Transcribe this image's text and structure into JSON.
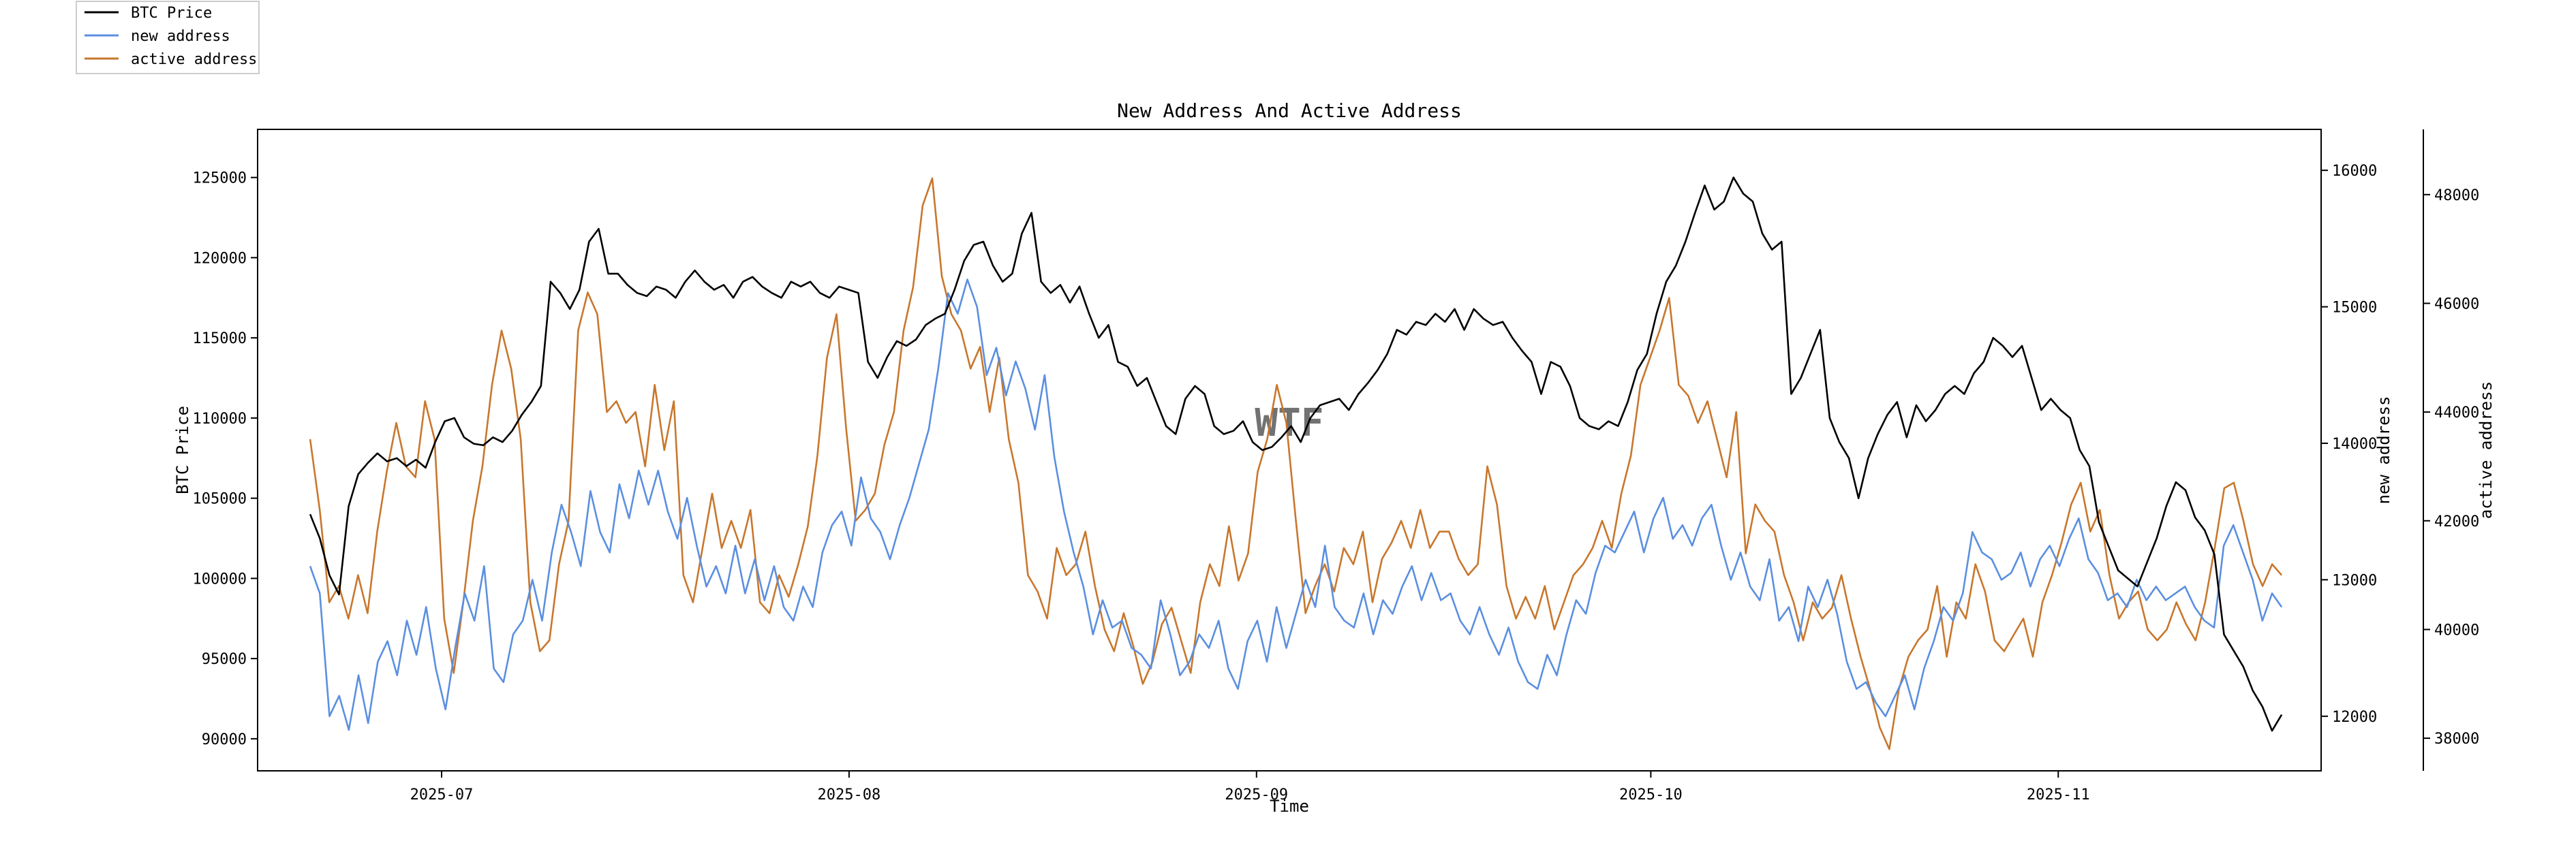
{
  "chart_data": {
    "type": "line",
    "title": "New Address And Active Address",
    "xlabel": "Time",
    "ylabels": {
      "price": "BTC Price",
      "new": "new address",
      "active": "active address"
    },
    "x_start": "2025-06-21",
    "x_end": "2025-11-18",
    "xlim": [
      "2025-06-17",
      "2025-11-21"
    ],
    "x_ticks": [
      "2025-07",
      "2025-08",
      "2025-09",
      "2025-10",
      "2025-11"
    ],
    "y_left": {
      "ylim": [
        88000,
        128000
      ],
      "ticks": [
        90000,
        95000,
        100000,
        105000,
        110000,
        115000,
        120000,
        125000
      ]
    },
    "y_right1": {
      "ylim": [
        11600,
        16300
      ],
      "ticks": [
        12000,
        13000,
        14000,
        15000,
        16000
      ]
    },
    "y_right2": {
      "ylim": [
        37400,
        49200
      ],
      "ticks": [
        38000,
        40000,
        42000,
        44000,
        46000,
        48000
      ]
    },
    "watermark": "WTF",
    "legend_position": "top-left, outside",
    "series": [
      {
        "name": "BTC Price",
        "axis": "left",
        "color": "#000000",
        "values": [
          104000,
          102500,
          100200,
          99000,
          104500,
          106500,
          107200,
          107800,
          107300,
          107500,
          107000,
          107400,
          106900,
          108500,
          109800,
          110000,
          108800,
          108400,
          108300,
          108800,
          108500,
          109200,
          110200,
          111000,
          112000,
          118500,
          117800,
          116800,
          118000,
          121000,
          121800,
          119000,
          119000,
          118300,
          117800,
          117600,
          118200,
          118000,
          117500,
          118500,
          119200,
          118500,
          118000,
          118300,
          117500,
          118500,
          118800,
          118200,
          117800,
          117500,
          118500,
          118200,
          118500,
          117800,
          117500,
          118200,
          118000,
          117800,
          113500,
          112500,
          113800,
          114800,
          114500,
          114900,
          115800,
          116200,
          116500,
          118000,
          119800,
          120800,
          121000,
          119500,
          118500,
          119000,
          121500,
          122800,
          118500,
          117800,
          118300,
          117200,
          118200,
          116500,
          115000,
          115800,
          113500,
          113200,
          112000,
          112500,
          111000,
          109500,
          109000,
          111200,
          112000,
          111500,
          109500,
          109000,
          109200,
          109800,
          108500,
          108000,
          108200,
          108800,
          109500,
          108500,
          110000,
          110800,
          111000,
          111200,
          110500,
          111500,
          112200,
          113000,
          114000,
          115500,
          115200,
          116000,
          115800,
          116500,
          116000,
          116800,
          115500,
          116800,
          116200,
          115800,
          116000,
          115000,
          114200,
          113500,
          111500,
          113500,
          113200,
          112000,
          110000,
          109500,
          109300,
          109800,
          109500,
          111000,
          113000,
          114000,
          116500,
          118500,
          119500,
          121000,
          122800,
          124500,
          123000,
          123500,
          125000,
          124000,
          123500,
          121500,
          120500,
          121000,
          111500,
          112500,
          114000,
          115500,
          110000,
          108500,
          107500,
          105000,
          107500,
          109000,
          110200,
          111000,
          108800,
          110800,
          109800,
          110500,
          111500,
          112000,
          111500,
          112800,
          113500,
          115000,
          114500,
          113800,
          114500,
          112500,
          110500,
          111200,
          110500,
          110000,
          108000,
          107000,
          103500,
          102000,
          100500,
          100000,
          99500,
          101000,
          102500,
          104500,
          106000,
          105500,
          103800,
          103000,
          101500,
          96500,
          95500,
          94500,
          93000,
          92000,
          90500,
          91500
        ]
      },
      {
        "name": "new address",
        "axis": "right1",
        "color": "#5b8fe0",
        "values": [
          13100,
          12900,
          12000,
          12150,
          11900,
          12300,
          11950,
          12400,
          12550,
          12300,
          12700,
          12450,
          12800,
          12350,
          12050,
          12500,
          12900,
          12700,
          13100,
          12350,
          12250,
          12600,
          12700,
          13000,
          12700,
          13200,
          13550,
          13350,
          13100,
          13650,
          13350,
          13200,
          13700,
          13450,
          13800,
          13550,
          13800,
          13500,
          13300,
          13600,
          13250,
          12950,
          13100,
          12900,
          13250,
          12900,
          13150,
          12850,
          13100,
          12800,
          12700,
          12950,
          12800,
          13200,
          13400,
          13500,
          13250,
          13750,
          13450,
          13350,
          13150,
          13400,
          13600,
          13850,
          14100,
          14550,
          15100,
          14950,
          15200,
          15000,
          14500,
          14700,
          14350,
          14600,
          14400,
          14100,
          14500,
          13900,
          13500,
          13200,
          12950,
          12600,
          12850,
          12650,
          12700,
          12500,
          12450,
          12350,
          12850,
          12600,
          12300,
          12400,
          12600,
          12500,
          12700,
          12350,
          12200,
          12550,
          12700,
          12400,
          12800,
          12500,
          12750,
          13000,
          12800,
          13250,
          12800,
          12700,
          12650,
          12900,
          12600,
          12850,
          12750,
          12950,
          13100,
          12850,
          13050,
          12850,
          12900,
          12700,
          12600,
          12800,
          12600,
          12450,
          12650,
          12400,
          12250,
          12200,
          12450,
          12300,
          12600,
          12850,
          12750,
          13050,
          13250,
          13200,
          13350,
          13500,
          13200,
          13450,
          13600,
          13300,
          13400,
          13250,
          13450,
          13550,
          13250,
          13000,
          13200,
          12950,
          12850,
          13150,
          12700,
          12800,
          12550,
          12950,
          12800,
          13000,
          12750,
          12400,
          12200,
          12250,
          12100,
          12000,
          12150,
          12300,
          12050,
          12350,
          12550,
          12800,
          12700,
          12900,
          13350,
          13200,
          13150,
          13000,
          13050,
          13200,
          12950,
          13150,
          13250,
          13100,
          13300,
          13450,
          13150,
          13050,
          12850,
          12900,
          12800,
          13000,
          12850,
          12950,
          12850,
          12900,
          12950,
          12800,
          12700,
          12650,
          13250,
          13400,
          13200,
          13000,
          12700,
          12900,
          12800
        ]
      },
      {
        "name": "active address",
        "axis": "right2",
        "color": "#c8772d",
        "values": [
          43500,
          42200,
          40500,
          40800,
          40200,
          41000,
          40300,
          41800,
          42900,
          43800,
          43000,
          42800,
          44200,
          43500,
          40200,
          39200,
          40500,
          42000,
          43000,
          44500,
          45500,
          44800,
          43500,
          40500,
          39600,
          39800,
          41200,
          42000,
          45500,
          46200,
          45800,
          44000,
          44200,
          43800,
          44000,
          43000,
          44500,
          43300,
          44200,
          41000,
          40500,
          41500,
          42500,
          41500,
          42000,
          41500,
          42200,
          40500,
          40300,
          41000,
          40600,
          41200,
          41900,
          43200,
          45000,
          45800,
          43700,
          42000,
          42200,
          42500,
          43400,
          44000,
          45500,
          46300,
          47800,
          48300,
          46500,
          45800,
          45500,
          44800,
          45200,
          44000,
          45000,
          43500,
          42700,
          41000,
          40700,
          40200,
          41500,
          41000,
          41200,
          41800,
          40800,
          40000,
          39600,
          40300,
          39700,
          39000,
          39400,
          40100,
          40400,
          39800,
          39200,
          40500,
          41200,
          40800,
          41900,
          40900,
          41400,
          42900,
          43500,
          44500,
          43800,
          42000,
          40300,
          40800,
          41200,
          40700,
          41500,
          41200,
          41800,
          40500,
          41300,
          41600,
          42000,
          41500,
          42200,
          41500,
          41800,
          41800,
          41300,
          41000,
          41200,
          43000,
          42300,
          40800,
          40200,
          40600,
          40200,
          40800,
          40000,
          40500,
          41000,
          41200,
          41500,
          42000,
          41500,
          42500,
          43200,
          44500,
          45000,
          45500,
          46100,
          44500,
          44300,
          43800,
          44200,
          43500,
          42800,
          44000,
          41400,
          42300,
          42000,
          41800,
          41000,
          40500,
          39800,
          40500,
          40200,
          40400,
          41000,
          40200,
          39500,
          38900,
          38200,
          37800,
          38900,
          39500,
          39800,
          40000,
          40800,
          39500,
          40500,
          40200,
          41200,
          40700,
          39800,
          39600,
          39900,
          40200,
          39500,
          40500,
          41000,
          41600,
          42300,
          42700,
          41800,
          42200,
          41000,
          40200,
          40500,
          40700,
          40000,
          39800,
          40000,
          40500,
          40100,
          39800,
          40500,
          41500,
          42600,
          42700,
          42000,
          41200,
          40800,
          41200,
          41000
        ]
      }
    ]
  }
}
